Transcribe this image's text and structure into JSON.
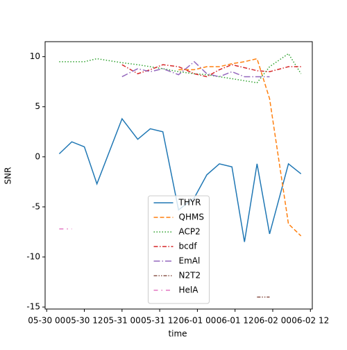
{
  "chart_data": {
    "type": "line",
    "x_label": "time",
    "y_label": "SNR",
    "x": [
      4,
      8,
      12,
      16,
      24,
      29,
      33,
      37,
      42,
      47,
      51,
      55,
      59,
      63,
      67,
      71,
      77,
      81
    ],
    "xlim": [
      -0.5,
      84.6
    ],
    "xticks": [
      {
        "value": 0,
        "label": "05-30 00"
      },
      {
        "value": 12,
        "label": "05-30 12"
      },
      {
        "value": 24,
        "label": "05-31 00"
      },
      {
        "value": 36,
        "label": "05-31 12"
      },
      {
        "value": 48,
        "label": "06-01 00"
      },
      {
        "value": 60,
        "label": "06-01 12"
      },
      {
        "value": 72,
        "label": "06-02 00"
      },
      {
        "value": 84,
        "label": "06-02 12"
      }
    ],
    "ylim": [
      -15.2,
      11.5
    ],
    "yticks": [
      -15,
      -10,
      -5,
      0,
      5,
      10
    ],
    "grid": false,
    "legend": "lower center",
    "series": [
      {
        "name": "THYR",
        "color": "#1f77b4",
        "linestyle": "solid",
        "values": [
          0.3,
          1.5,
          1.0,
          -2.7,
          3.8,
          1.75,
          2.8,
          2.5,
          -5.3,
          -4.1,
          -1.8,
          -0.7,
          -1.0,
          -8.5,
          -0.7,
          -7.7,
          -0.7,
          -1.7
        ]
      },
      {
        "name": "QHMS",
        "color": "#ff7f0e",
        "linestyle": "dashed",
        "values": [
          null,
          null,
          null,
          null,
          null,
          null,
          null,
          null,
          8.7,
          8.7,
          9.0,
          9.0,
          9.3,
          9.5,
          9.8,
          5.8,
          -6.7,
          -7.9
        ]
      },
      {
        "name": "ACP2",
        "color": "#2ca02c",
        "linestyle": "dotted",
        "values": [
          9.5,
          9.5,
          9.5,
          9.8,
          9.4,
          9.2,
          9.0,
          8.8,
          8.5,
          8.3,
          8.2,
          8.0,
          7.8,
          7.6,
          7.4,
          9.0,
          10.3,
          8.3
        ]
      },
      {
        "name": "bcdf",
        "color": "#d62728",
        "linestyle": "dashdot",
        "values": [
          null,
          null,
          null,
          null,
          9.2,
          8.3,
          8.7,
          9.2,
          9.0,
          8.3,
          8.0,
          8.7,
          9.2,
          8.9,
          8.6,
          8.5,
          9.0,
          9.0
        ]
      },
      {
        "name": "EmAl",
        "color": "#9467bd",
        "linestyle": "longdashdot",
        "values": [
          null,
          null,
          null,
          null,
          8.0,
          8.8,
          8.5,
          8.8,
          8.2,
          9.5,
          8.3,
          8.0,
          8.5,
          8.0,
          8.0,
          8.0,
          null,
          null
        ]
      },
      {
        "name": "N2T2",
        "color": "#8c564b",
        "linestyle": "dashdotdot",
        "values": [
          null,
          null,
          null,
          null,
          null,
          null,
          null,
          null,
          null,
          null,
          null,
          null,
          null,
          null,
          -14.0,
          -14.0,
          null,
          null
        ]
      },
      {
        "name": "HelA",
        "color": "#e377c2",
        "linestyle": "loosedashdot",
        "values": [
          -7.2,
          -7.2,
          null,
          null,
          null,
          null,
          null,
          null,
          null,
          null,
          null,
          null,
          null,
          null,
          null,
          null,
          null,
          null
        ]
      }
    ]
  }
}
